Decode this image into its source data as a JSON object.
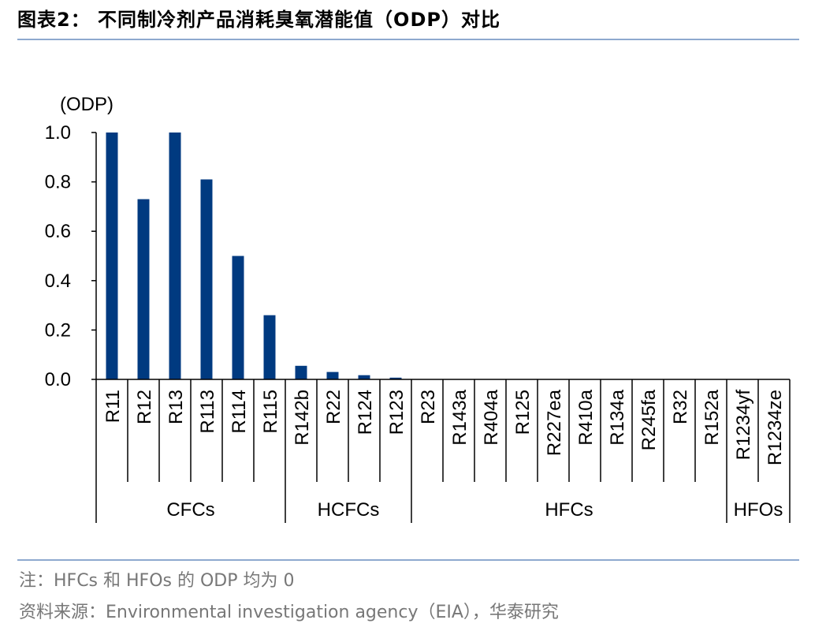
{
  "header": {
    "title": "图表2：  不同制冷剂产品消耗臭氧潜能值（ODP）对比"
  },
  "chart_data": {
    "type": "bar",
    "unit_label": "(ODP)",
    "ylim": [
      0,
      1.0
    ],
    "y_ticks": [
      "0.0",
      "0.2",
      "0.4",
      "0.6",
      "0.8",
      "1.0"
    ],
    "y_tick_values": [
      0,
      0.2,
      0.4,
      0.6,
      0.8,
      1.0
    ],
    "categories": [
      "R11",
      "R12",
      "R13",
      "R113",
      "R114",
      "R115",
      "R142b",
      "R22",
      "R124",
      "R123",
      "R23",
      "R143a",
      "R404a",
      "R125",
      "R227ea",
      "R410a",
      "R134a",
      "R245fa",
      "R32",
      "R152a",
      "R1234yf",
      "R1234ze"
    ],
    "values": [
      1.0,
      0.73,
      1.0,
      0.81,
      0.5,
      0.26,
      0.055,
      0.03,
      0.017,
      0.007,
      0,
      0,
      0,
      0,
      0,
      0,
      0,
      0,
      0,
      0,
      0,
      0
    ],
    "groups": [
      {
        "name": "CFCs",
        "count": 6
      },
      {
        "name": "HCFCs",
        "count": 4
      },
      {
        "name": "HFCs",
        "count": 10
      },
      {
        "name": "HFOs",
        "count": 2
      }
    ],
    "bar_color": "#003a80",
    "grid": false
  },
  "footer": {
    "note": "注：HFCs 和 HFOs 的 ODP 均为 0",
    "source": "资料来源：Environmental investigation agency（EIA），华泰研究"
  }
}
